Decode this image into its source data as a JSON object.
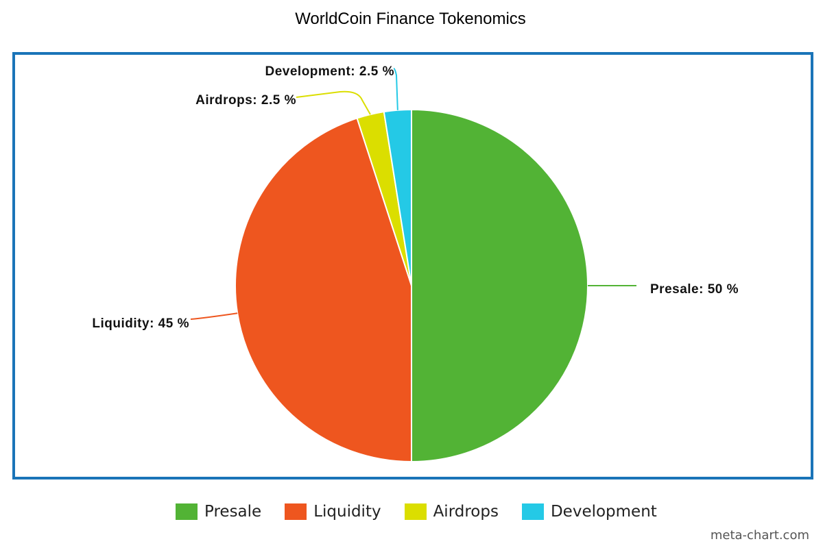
{
  "chart_data": {
    "type": "pie",
    "title": "WorldCoin Finance Tokenomics",
    "categories": [
      "Presale",
      "Liquidity",
      "Airdrops",
      "Development"
    ],
    "values": [
      50,
      45,
      2.5,
      2.5
    ],
    "data_labels": [
      "Presale: 50 %",
      "Liquidity: 45 %",
      "Airdrops: 2.5 %",
      "Development: 2.5 %"
    ],
    "colors": [
      "#52b335",
      "#ee561f",
      "#dbde00",
      "#24c9e6"
    ],
    "legend_position": "bottom-center",
    "frame_color": "#1a74b8"
  },
  "legend": {
    "items": [
      "Presale",
      "Liquidity",
      "Airdrops",
      "Development"
    ]
  },
  "watermark": "meta-chart.com"
}
